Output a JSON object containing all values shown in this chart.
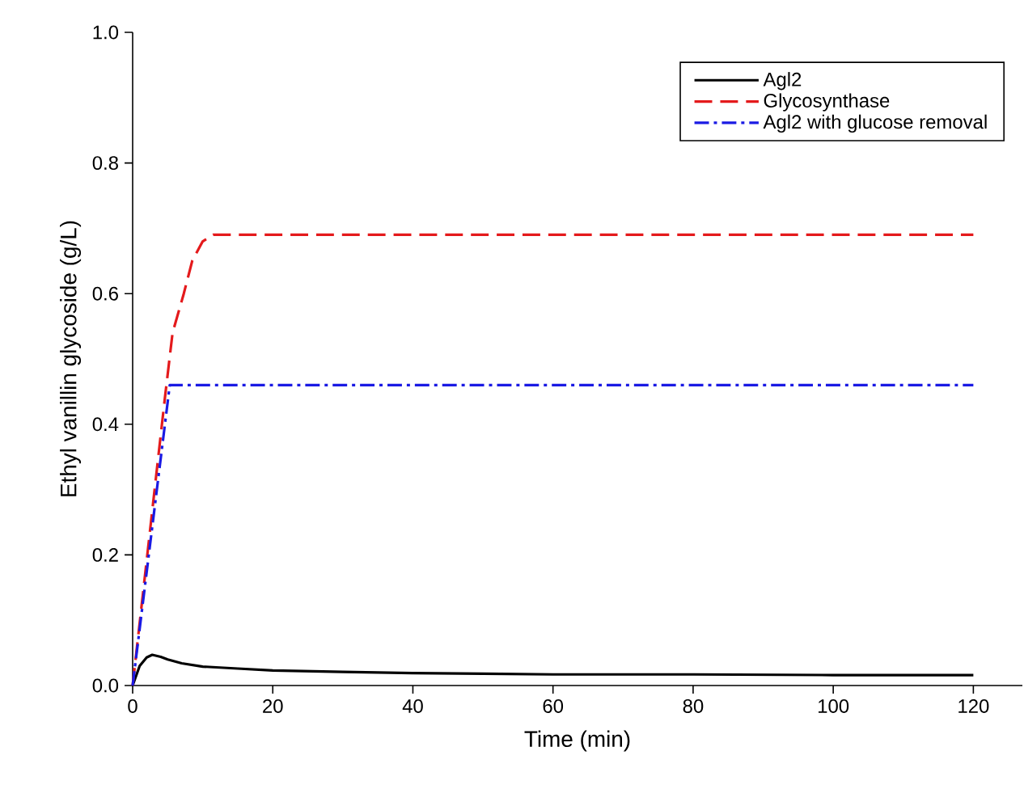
{
  "chart_data": {
    "type": "line",
    "xlabel": "Time (min)",
    "ylabel": "Ethyl vanillin glycoside (g/L)",
    "xlim": [
      0,
      127
    ],
    "ylim": [
      0,
      1.0
    ],
    "xticks": [
      0,
      20,
      40,
      60,
      80,
      100,
      120
    ],
    "yticks": [
      {
        "value": 0,
        "label": "0.0"
      },
      {
        "value": 0.2,
        "label": "0.2"
      },
      {
        "value": 0.4,
        "label": "0.4"
      },
      {
        "value": 0.6,
        "label": "0.6"
      },
      {
        "value": 0.8,
        "label": "0.8"
      },
      {
        "value": 1.0,
        "label": "1.0"
      }
    ],
    "legend": "top right",
    "grid": false,
    "marker": "none",
    "series": [
      {
        "name": "Agl2",
        "color": "#000000",
        "line_style": "solid",
        "x": [
          0,
          1,
          2,
          2.8,
          4,
          5,
          7,
          10,
          15,
          20,
          30,
          40,
          50,
          60,
          80,
          100,
          120
        ],
        "values": [
          0,
          0.03,
          0.043,
          0.047,
          0.044,
          0.04,
          0.034,
          0.029,
          0.026,
          0.023,
          0.021,
          0.019,
          0.018,
          0.017,
          0.017,
          0.016,
          0.016
        ]
      },
      {
        "name": "Glycosynthase",
        "color": "#e41a1c",
        "line_style": "dashed",
        "x": [
          0,
          4.6,
          5.7,
          7.3,
          8.5,
          10,
          11.5,
          120
        ],
        "values": [
          0,
          0.44,
          0.54,
          0.6,
          0.65,
          0.68,
          0.69,
          0.69
        ]
      },
      {
        "name": "Agl2 with glucose removal",
        "color": "#1a1ae4",
        "line_style": "dashdot",
        "x": [
          0,
          5.3,
          120
        ],
        "values": [
          0,
          0.46,
          0.46
        ]
      }
    ]
  }
}
